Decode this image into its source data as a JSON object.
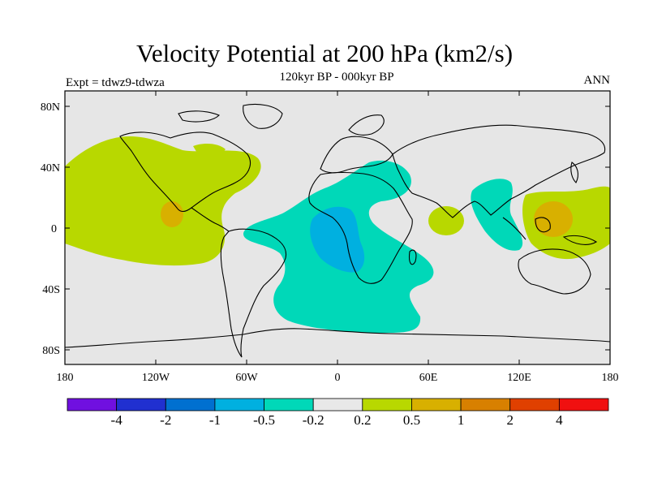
{
  "title": "Velocity Potential at 200 hPa (km2/s)",
  "subtitle": "120kyr BP - 000kyr BP",
  "left_label": "Expt = tdwz9-tdwza",
  "right_label": "ANN",
  "lat_ticks": [
    "80N",
    "40N",
    "0",
    "40S",
    "80S"
  ],
  "lon_ticks": [
    "180",
    "120W",
    "60W",
    "0",
    "60E",
    "120E",
    "180"
  ],
  "colorbar": {
    "colors": [
      "#7010e0",
      "#2030d0",
      "#0070d0",
      "#00b0e0",
      "#00d8b8",
      "#e8e8e8",
      "#b8d800",
      "#d8b000",
      "#d88000",
      "#e04000",
      "#f01010"
    ],
    "labels": [
      "-4",
      "-2",
      "-1",
      "-0.5",
      "-0.2",
      "0.2",
      "0.5",
      "1",
      "2",
      "4"
    ]
  },
  "map_background": "#e6e6e6"
}
